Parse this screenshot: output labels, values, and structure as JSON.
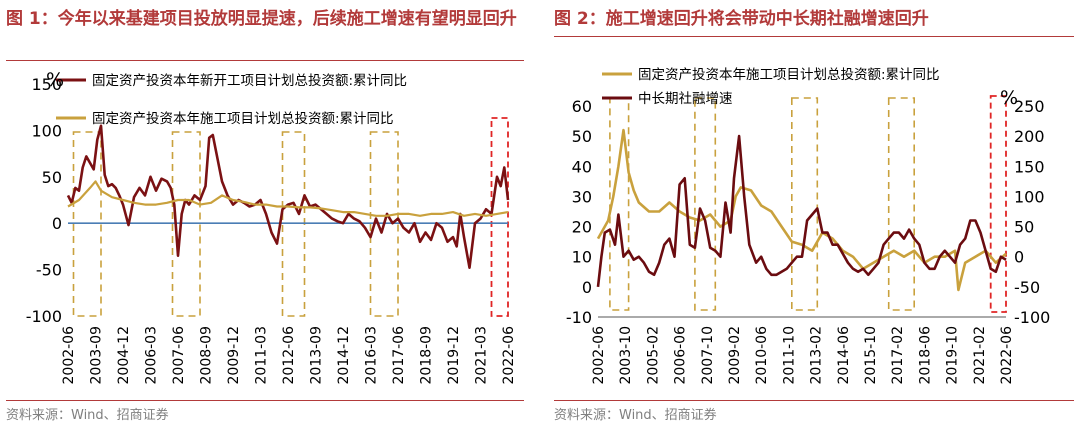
{
  "charts": {
    "left": {
      "title": "图 1：今年以来基建项目投放明显提速，后续施工增速有望明显回升",
      "source": "资料来源：Wind、招商证券"
    },
    "right": {
      "title": "图 2：施工增速回升将会带动中长期社融增速回升",
      "source": "资料来源：Wind、招商证券"
    }
  },
  "chart_data": [
    {
      "type": "line",
      "title": "图 1：今年以来基建项目投放明显提速，后续施工增速有望明显回升",
      "ylabel": "%",
      "ylim": [
        -100,
        150
      ],
      "yticks": [
        -100,
        -50,
        0,
        50,
        100,
        150
      ],
      "xlim": [
        "2002-06",
        "2022-06"
      ],
      "xticks": [
        "2002-06",
        "2003-09",
        "2004-12",
        "2006-03",
        "2007-06",
        "2008-09",
        "2009-12",
        "2011-03",
        "2012-06",
        "2013-09",
        "2014-12",
        "2016-03",
        "2017-06",
        "2018-09",
        "2019-12",
        "2021-03",
        "2022-06"
      ],
      "legend": "top-left",
      "series": [
        {
          "name": "固定资产投资本年新开工项目计划总投资额:累计同比",
          "color": "#7b1113",
          "x": [
            "2002-06",
            "2002-08",
            "2002-10",
            "2002-12",
            "2003-02",
            "2003-04",
            "2003-06",
            "2003-08",
            "2003-10",
            "2003-12",
            "2004-02",
            "2004-04",
            "2004-06",
            "2004-08",
            "2004-10",
            "2004-12",
            "2005-03",
            "2005-06",
            "2005-09",
            "2005-12",
            "2006-03",
            "2006-06",
            "2006-09",
            "2006-12",
            "2007-02",
            "2007-04",
            "2007-06",
            "2007-08",
            "2007-10",
            "2007-12",
            "2008-03",
            "2008-06",
            "2008-09",
            "2008-11",
            "2009-01",
            "2009-03",
            "2009-06",
            "2009-09",
            "2009-12",
            "2010-03",
            "2010-06",
            "2010-09",
            "2010-12",
            "2011-03",
            "2011-06",
            "2011-09",
            "2011-12",
            "2012-03",
            "2012-06",
            "2012-09",
            "2012-12",
            "2013-03",
            "2013-06",
            "2013-09",
            "2013-12",
            "2014-03",
            "2014-06",
            "2014-09",
            "2014-12",
            "2015-03",
            "2015-06",
            "2015-09",
            "2015-12",
            "2016-03",
            "2016-06",
            "2016-09",
            "2016-12",
            "2017-03",
            "2017-06",
            "2017-09",
            "2017-12",
            "2018-03",
            "2018-06",
            "2018-09",
            "2018-12",
            "2019-03",
            "2019-06",
            "2019-09",
            "2019-12",
            "2020-02",
            "2020-04",
            "2020-06",
            "2020-09",
            "2020-12",
            "2021-03",
            "2021-06",
            "2021-09",
            "2021-12",
            "2022-02",
            "2022-04",
            "2022-06"
          ],
          "values": [
            30,
            22,
            38,
            35,
            60,
            72,
            65,
            58,
            90,
            105,
            52,
            40,
            42,
            38,
            30,
            20,
            -2,
            28,
            38,
            30,
            50,
            35,
            48,
            45,
            38,
            20,
            -35,
            10,
            25,
            20,
            30,
            25,
            40,
            92,
            95,
            75,
            45,
            30,
            20,
            25,
            22,
            18,
            20,
            25,
            10,
            -10,
            -22,
            15,
            20,
            22,
            10,
            30,
            18,
            20,
            15,
            10,
            5,
            2,
            0,
            10,
            5,
            2,
            -5,
            -15,
            5,
            -10,
            10,
            0,
            5,
            -5,
            -10,
            0,
            -20,
            -10,
            -18,
            0,
            -5,
            -20,
            -15,
            -25,
            10,
            -15,
            -48,
            0,
            5,
            15,
            10,
            50,
            40,
            60,
            25
          ]
        },
        {
          "name": "固定资产投资本年施工项目计划总投资额:累计同比",
          "color": "#c9a13d",
          "x": [
            "2002-06",
            "2002-12",
            "2003-06",
            "2003-09",
            "2003-12",
            "2004-06",
            "2004-12",
            "2005-06",
            "2005-12",
            "2006-06",
            "2006-12",
            "2007-06",
            "2007-12",
            "2008-06",
            "2008-12",
            "2009-06",
            "2009-12",
            "2010-06",
            "2010-12",
            "2011-06",
            "2011-12",
            "2012-06",
            "2012-12",
            "2013-06",
            "2013-12",
            "2014-06",
            "2014-12",
            "2015-06",
            "2015-12",
            "2016-06",
            "2016-12",
            "2017-06",
            "2017-12",
            "2018-06",
            "2018-12",
            "2019-06",
            "2019-12",
            "2020-06",
            "2020-12",
            "2021-06",
            "2021-12",
            "2022-06"
          ],
          "values": [
            18,
            25,
            38,
            45,
            35,
            28,
            25,
            22,
            20,
            20,
            22,
            25,
            25,
            20,
            22,
            30,
            25,
            23,
            20,
            20,
            18,
            18,
            17,
            17,
            16,
            14,
            12,
            12,
            10,
            8,
            8,
            10,
            10,
            8,
            10,
            10,
            12,
            8,
            10,
            8,
            10,
            12
          ]
        }
      ],
      "shaded_periods": [
        [
          "2002-09",
          "2003-12"
        ],
        [
          "2007-03",
          "2008-06"
        ],
        [
          "2012-03",
          "2013-03"
        ],
        [
          "2016-03",
          "2017-06"
        ]
      ],
      "highlight_period": [
        "2021-09",
        "2022-06"
      ]
    },
    {
      "type": "line",
      "title": "图 2：施工增速回升将会带动中长期社融增速回升",
      "ylabel": "%",
      "ylim_left": [
        -10,
        60
      ],
      "yticks_left": [
        -10,
        0,
        10,
        20,
        30,
        40,
        50,
        60
      ],
      "ylim_right": [
        -100,
        250
      ],
      "yticks_right": [
        -100,
        -50,
        0,
        50,
        100,
        150,
        200,
        250
      ],
      "xlim": [
        "2002-06",
        "2022-06"
      ],
      "xticks": [
        "2002-06",
        "2003-10",
        "2005-02",
        "2006-06",
        "2007-10",
        "2009-02",
        "2010-06",
        "2011-10",
        "2013-02",
        "2014-06",
        "2015-10",
        "2017-02",
        "2018-06",
        "2019-10",
        "2021-02",
        "2022-06"
      ],
      "legend": "top-left",
      "series": [
        {
          "name": "固定资产投资本年施工项目计划总投资额:累计同比",
          "axis": "left",
          "color": "#c9a13d",
          "x": [
            "2002-06",
            "2002-12",
            "2003-03",
            "2003-06",
            "2003-09",
            "2003-12",
            "2004-03",
            "2004-06",
            "2004-12",
            "2005-06",
            "2005-12",
            "2006-06",
            "2006-12",
            "2007-06",
            "2007-12",
            "2008-06",
            "2008-12",
            "2009-03",
            "2009-06",
            "2009-12",
            "2010-06",
            "2010-12",
            "2011-06",
            "2011-12",
            "2012-06",
            "2012-12",
            "2013-06",
            "2013-12",
            "2014-06",
            "2014-12",
            "2015-06",
            "2015-12",
            "2016-06",
            "2016-12",
            "2017-06",
            "2017-12",
            "2018-06",
            "2018-12",
            "2019-06",
            "2019-12",
            "2020-02",
            "2020-06",
            "2020-12",
            "2021-06",
            "2021-12",
            "2022-06"
          ],
          "values": [
            16,
            22,
            30,
            40,
            52,
            38,
            32,
            28,
            25,
            25,
            28,
            25,
            23,
            22,
            24,
            20,
            22,
            30,
            33,
            32,
            27,
            25,
            20,
            15,
            14,
            12,
            18,
            16,
            12,
            10,
            6,
            8,
            10,
            12,
            10,
            12,
            8,
            10,
            10,
            12,
            -1,
            8,
            10,
            12,
            8,
            11
          ]
        },
        {
          "name": "中长期社融增速",
          "axis": "right",
          "color": "#6b0c10",
          "x": [
            "2002-06",
            "2002-08",
            "2002-10",
            "2003-01",
            "2003-04",
            "2003-06",
            "2003-09",
            "2003-12",
            "2004-03",
            "2004-06",
            "2004-09",
            "2004-12",
            "2005-03",
            "2005-06",
            "2005-09",
            "2005-12",
            "2006-03",
            "2006-06",
            "2006-09",
            "2006-12",
            "2007-03",
            "2007-06",
            "2007-09",
            "2007-12",
            "2008-03",
            "2008-06",
            "2008-09",
            "2008-12",
            "2009-02",
            "2009-05",
            "2009-08",
            "2009-11",
            "2010-03",
            "2010-06",
            "2010-09",
            "2010-12",
            "2011-03",
            "2011-06",
            "2011-09",
            "2011-12",
            "2012-03",
            "2012-06",
            "2012-09",
            "2012-12",
            "2013-03",
            "2013-06",
            "2013-09",
            "2013-12",
            "2014-03",
            "2014-06",
            "2014-09",
            "2014-12",
            "2015-03",
            "2015-06",
            "2015-09",
            "2015-12",
            "2016-03",
            "2016-06",
            "2016-09",
            "2016-12",
            "2017-03",
            "2017-06",
            "2017-09",
            "2017-12",
            "2018-03",
            "2018-06",
            "2018-09",
            "2018-12",
            "2019-03",
            "2019-06",
            "2019-09",
            "2019-12",
            "2020-03",
            "2020-06",
            "2020-09",
            "2020-12",
            "2021-03",
            "2021-06",
            "2021-09",
            "2021-12",
            "2022-03",
            "2022-06"
          ],
          "values": [
            -50,
            0,
            40,
            45,
            20,
            70,
            0,
            10,
            -5,
            0,
            -10,
            -25,
            -30,
            -10,
            20,
            30,
            0,
            120,
            130,
            20,
            15,
            80,
            60,
            15,
            10,
            0,
            90,
            40,
            130,
            200,
            100,
            20,
            -10,
            0,
            -20,
            -30,
            -30,
            -25,
            -20,
            -10,
            0,
            0,
            60,
            70,
            80,
            40,
            40,
            20,
            20,
            5,
            -10,
            -20,
            -25,
            -20,
            -30,
            -20,
            -10,
            20,
            30,
            40,
            40,
            30,
            45,
            30,
            20,
            -10,
            -20,
            -20,
            0,
            10,
            0,
            -10,
            20,
            30,
            60,
            60,
            40,
            10,
            -20,
            -25,
            0,
            -5
          ]
        }
      ],
      "shaded_periods": [
        [
          "2003-01",
          "2003-12"
        ],
        [
          "2007-03",
          "2008-03"
        ],
        [
          "2011-12",
          "2013-03"
        ],
        [
          "2016-09",
          "2017-12"
        ]
      ],
      "highlight_period": [
        "2021-09",
        "2022-06"
      ]
    }
  ]
}
